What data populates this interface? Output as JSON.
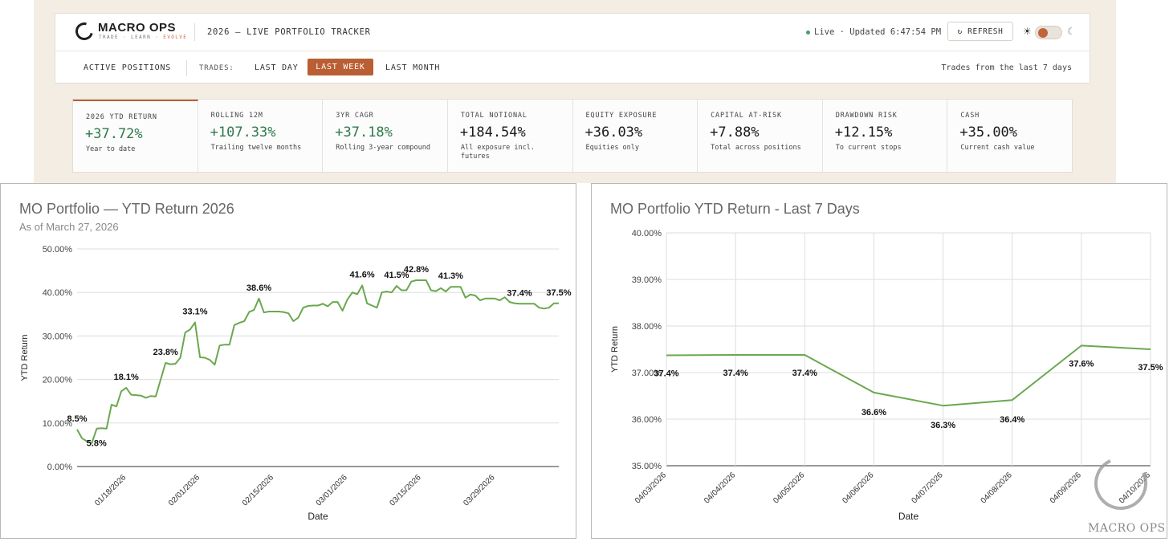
{
  "header": {
    "logo_name": "MACRO OPS",
    "logo_tag_a": "TRADE · LEARN · ",
    "logo_tag_b": "EVOLVE",
    "tracker_title": "2026 — LIVE PORTFOLIO TRACKER",
    "live_status": "Live · Updated 6:47:54 PM",
    "refresh_label": "↻ REFRESH",
    "sun_icon": "☀",
    "moon_icon": "☾"
  },
  "nav": {
    "active_positions": "ACTIVE POSITIONS",
    "trades_label": "TRADES:",
    "last_day": "LAST DAY",
    "last_week": "LAST WEEK",
    "last_month": "LAST MONTH",
    "note": "Trades from the last 7 days"
  },
  "stats": [
    {
      "label": "2026 YTD RETURN",
      "value": "+37.72%",
      "sub": "Year to date"
    },
    {
      "label": "ROLLING 12M",
      "value": "+107.33%",
      "sub": "Trailing twelve months"
    },
    {
      "label": "3YR CAGR",
      "value": "+37.18%",
      "sub": "Rolling 3-year compound"
    },
    {
      "label": "TOTAL NOTIONAL",
      "value": "+184.54%",
      "sub": "All exposure incl. futures"
    },
    {
      "label": "EQUITY EXPOSURE",
      "value": "+36.03%",
      "sub": "Equities only"
    },
    {
      "label": "CAPITAL AT-RISK",
      "value": "+7.88%",
      "sub": "Total across positions"
    },
    {
      "label": "DRAWDOWN RISK",
      "value": "+12.15%",
      "sub": "To current stops"
    },
    {
      "label": "CASH",
      "value": "+35.00%",
      "sub": "Current cash value"
    }
  ],
  "colors": {
    "accent": "#b95f33",
    "positive": "#2e7a4a",
    "line": "#6aa84f"
  },
  "chart_data": [
    {
      "type": "line",
      "title": "MO Portfolio — YTD Return 2026",
      "subtitle": "As of March 27, 2026",
      "xlabel": "Date",
      "ylabel": "YTD Return",
      "ylim": [
        0,
        50
      ],
      "yticks": [
        "0.00%",
        "10.00%",
        "20.00%",
        "30.00%",
        "40.00%",
        "50.00%"
      ],
      "xticks": [
        {
          "label": "01/18/2026",
          "index": 10
        },
        {
          "label": "02/01/2026",
          "index": 25
        },
        {
          "label": "02/15/2026",
          "index": 40
        },
        {
          "label": "03/01/2026",
          "index": 55
        },
        {
          "label": "03/15/2026",
          "index": 70
        },
        {
          "label": "03/29/2026",
          "index": 85
        }
      ],
      "values": [
        8.5,
        6.5,
        5.8,
        5.4,
        8.7,
        8.8,
        8.7,
        14.2,
        13.8,
        17.3,
        18.1,
        16.5,
        16.4,
        16.3,
        15.8,
        16.2,
        16.1,
        20.0,
        23.8,
        23.5,
        23.6,
        25.0,
        30.8,
        31.5,
        33.1,
        25.1,
        25.0,
        24.5,
        23.4,
        27.8,
        28.0,
        28.0,
        32.5,
        33.0,
        33.4,
        35.5,
        36.0,
        38.6,
        35.4,
        35.6,
        35.6,
        35.6,
        35.5,
        35.2,
        33.4,
        34.2,
        36.5,
        36.9,
        37.0,
        37.0,
        37.4,
        36.8,
        37.8,
        37.8,
        35.8,
        38.4,
        40.0,
        39.6,
        41.6,
        37.5,
        37.0,
        36.5,
        40.0,
        40.2,
        40.0,
        41.5,
        40.5,
        40.5,
        42.5,
        42.8,
        42.8,
        42.8,
        40.5,
        40.3,
        41.0,
        40.2,
        41.3,
        41.3,
        41.3,
        38.8,
        39.5,
        39.3,
        38.2,
        38.6,
        38.6,
        38.6,
        38.2,
        38.9,
        37.8,
        37.5,
        37.4,
        37.4,
        37.4,
        37.4,
        36.5,
        36.3,
        36.5,
        37.5,
        37.5
      ],
      "data_labels": [
        {
          "index": 0,
          "text": "8.5%"
        },
        {
          "index": 2,
          "text": "5.8%"
        },
        {
          "index": 10,
          "text": "18.1%"
        },
        {
          "index": 18,
          "text": "23.8%"
        },
        {
          "index": 24,
          "text": "33.1%"
        },
        {
          "index": 37,
          "text": "38.6%"
        },
        {
          "index": 58,
          "text": "41.6%"
        },
        {
          "index": 65,
          "text": "41.5%"
        },
        {
          "index": 69,
          "text": "42.8%"
        },
        {
          "index": 76,
          "text": "41.3%"
        },
        {
          "index": 90,
          "text": "37.4%"
        },
        {
          "index": 98,
          "text": "37.5%"
        }
      ]
    },
    {
      "type": "line",
      "title": "MO Portfolio YTD Return - Last 7 Days",
      "xlabel": "Date",
      "ylabel": "YTD Return",
      "ylim": [
        35,
        40
      ],
      "yticks": [
        "35.00%",
        "36.00%",
        "37.00%",
        "38.00%",
        "39.00%",
        "40.00%"
      ],
      "categories": [
        "04/03/2026",
        "04/04/2026",
        "04/05/2026",
        "04/06/2026",
        "04/07/2026",
        "04/08/2026",
        "04/09/2026",
        "04/10/2026"
      ],
      "values": [
        37.37,
        37.38,
        37.38,
        36.57,
        36.29,
        36.41,
        37.58,
        37.5
      ],
      "data_labels": [
        "37.4%",
        "37.4%",
        "37.4%",
        "36.6%",
        "36.3%",
        "36.4%",
        "37.6%",
        "37.5%"
      ]
    }
  ],
  "watermark": {
    "text": "MACRO OPS"
  }
}
